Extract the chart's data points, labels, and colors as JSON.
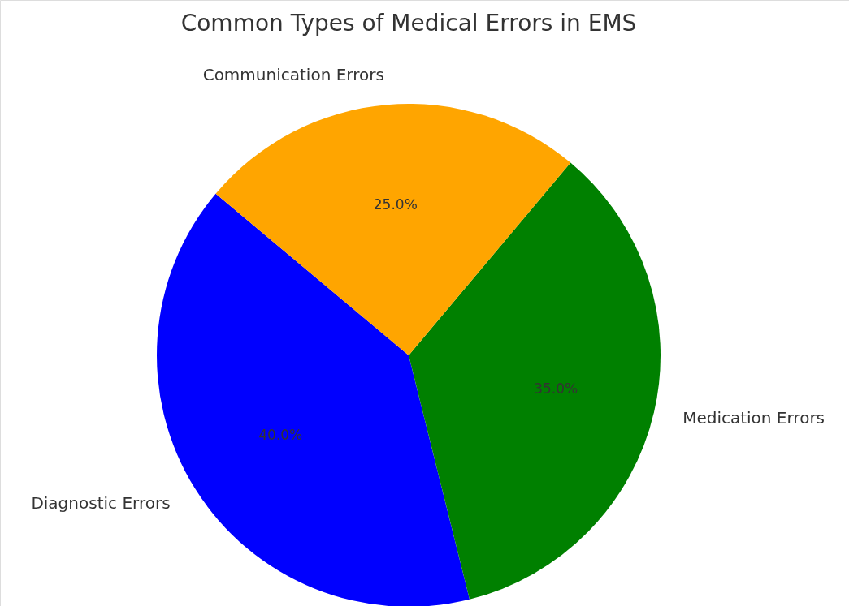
{
  "chart_data": {
    "type": "pie",
    "title": "Common Types of Medical Errors in EMS",
    "categories": [
      "Diagnostic Errors",
      "Medication Errors",
      "Communication Errors"
    ],
    "values": [
      40,
      35,
      25
    ],
    "colors": [
      "#0000ff",
      "#008000",
      "#ffa500"
    ],
    "value_labels": [
      "40.0%",
      "35.0%",
      "25.0%"
    ]
  }
}
